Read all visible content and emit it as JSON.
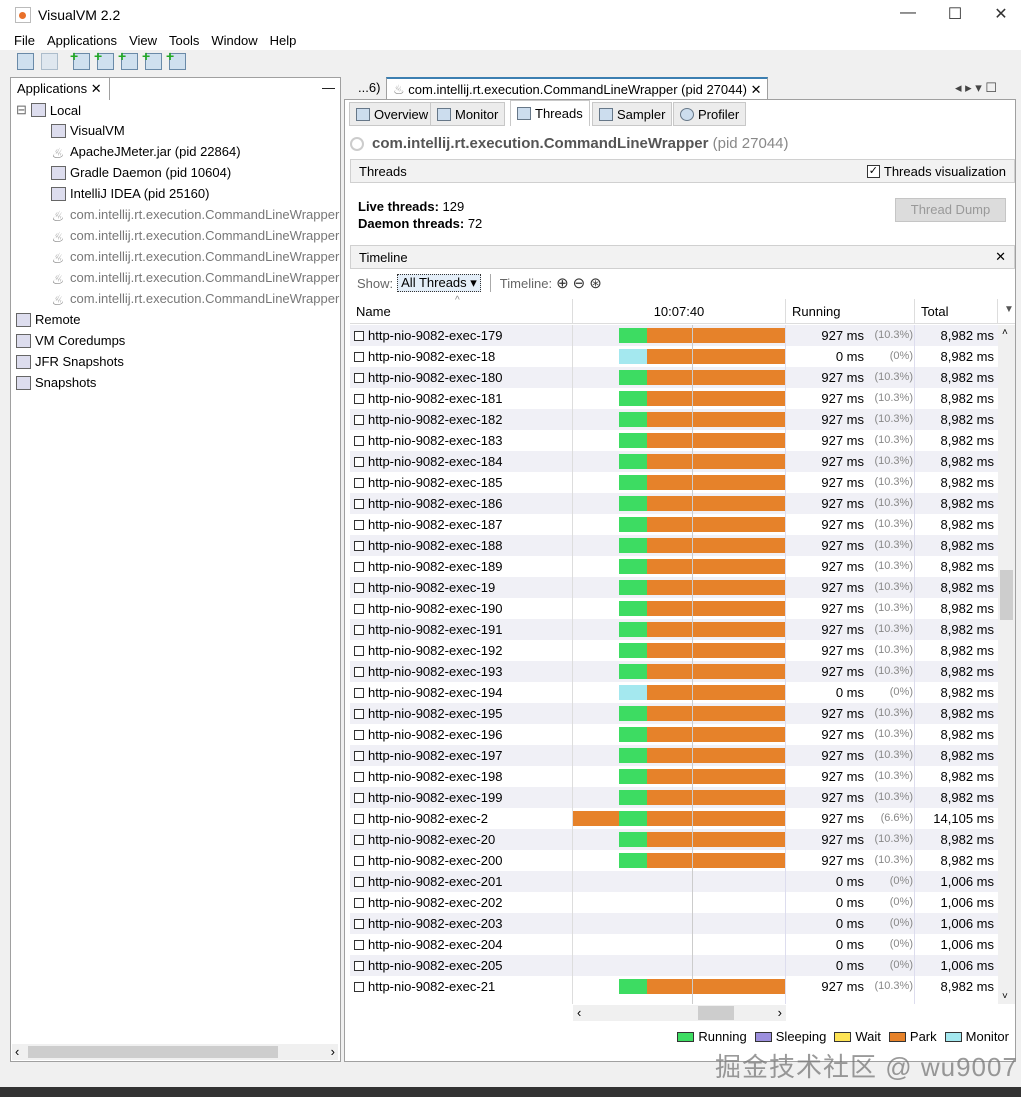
{
  "window": {
    "title": "VisualVM 2.2",
    "controls": [
      "—",
      "☐",
      "✕"
    ]
  },
  "menu": [
    "File",
    "Applications",
    "View",
    "Tools",
    "Window",
    "Help"
  ],
  "toolbar": [
    {
      "icon": "load-icon"
    },
    {
      "icon": "save-icon"
    },
    {
      "icon": "add-jmx-connection-icon"
    },
    {
      "icon": "add-jmx-icon"
    },
    {
      "icon": "add-coredump-icon"
    },
    {
      "icon": "add-jfr-icon"
    },
    {
      "icon": "add-snapshot-icon"
    }
  ],
  "sidebar": {
    "tab_label": "Applications",
    "close": "✕",
    "minimize": "—",
    "items": [
      {
        "label": "Local",
        "level": 0,
        "icon": "computer-icon"
      },
      {
        "label": "VisualVM",
        "level": 1,
        "icon": "visualvm-icon"
      },
      {
        "label": "ApacheJMeter.jar (pid 22864)",
        "level": 1,
        "icon": "java-icon"
      },
      {
        "label": "Gradle Daemon (pid 10604)",
        "level": 1,
        "icon": "gradle-icon"
      },
      {
        "label": "IntelliJ IDEA (pid 25160)",
        "level": 1,
        "icon": "intellij-icon"
      },
      {
        "label": "com.intellij.rt.execution.CommandLineWrapper",
        "level": 1,
        "icon": "java-icon",
        "dim": true
      },
      {
        "label": "com.intellij.rt.execution.CommandLineWrapper",
        "level": 1,
        "icon": "java-icon",
        "dim": true
      },
      {
        "label": "com.intellij.rt.execution.CommandLineWrapper",
        "level": 1,
        "icon": "java-icon",
        "dim": true
      },
      {
        "label": "com.intellij.rt.execution.CommandLineWrapper",
        "level": 1,
        "icon": "java-icon",
        "dim": true
      },
      {
        "label": "com.intellij.rt.execution.CommandLineWrapper",
        "level": 1,
        "icon": "java-icon",
        "dim": true
      },
      {
        "label": "Remote",
        "level": 0,
        "icon": "remote-icon"
      },
      {
        "label": "VM Coredumps",
        "level": 0,
        "icon": "coredump-icon"
      },
      {
        "label": "JFR Snapshots",
        "level": 0,
        "icon": "jfr-icon"
      },
      {
        "label": "Snapshots",
        "level": 0,
        "icon": "snapshot-icon"
      }
    ]
  },
  "doc_tabs": {
    "overflow": "...6)",
    "active": "com.intellij.rt.execution.CommandLineWrapper (pid 27044)",
    "close": "✕"
  },
  "sub_tabs": [
    "Overview",
    "Monitor",
    "Threads",
    "Sampler",
    "Profiler"
  ],
  "active_sub_tab": "Threads",
  "page": {
    "title": "com.intellij.rt.execution.CommandLineWrapper",
    "pid": "(pid 27044)"
  },
  "threads_section": {
    "title": "Threads",
    "visualization_label": "Threads visualization",
    "visualization_checked": true,
    "live_label": "Live threads:",
    "live": "129",
    "daemon_label": "Daemon threads:",
    "daemon": "72",
    "dump_button": "Thread Dump"
  },
  "timeline": {
    "title": "Timeline",
    "close": "✕",
    "show_label": "Show:",
    "show_value": "All Threads",
    "timeline_label": "Timeline:",
    "columns": {
      "name": "Name",
      "time": "10:07:40",
      "running": "Running",
      "total": "Total"
    }
  },
  "colors": {
    "Running": "#3ddc62",
    "Sleeping": "#9c8fdd",
    "Wait": "#fde354",
    "Park": "#e6822a",
    "Monitor": "#a4e8ef"
  },
  "legend": [
    "Running",
    "Sleeping",
    "Wait",
    "Park",
    "Monitor"
  ],
  "threads": [
    {
      "name": "http-nio-9082-exec-179",
      "pattern": "normal",
      "running": "927 ms",
      "pct": "(10.3%)",
      "total": "8,982 ms"
    },
    {
      "name": "http-nio-9082-exec-18",
      "pattern": "monitor",
      "running": "0 ms",
      "pct": "(0%)",
      "total": "8,982 ms"
    },
    {
      "name": "http-nio-9082-exec-180",
      "pattern": "normal",
      "running": "927 ms",
      "pct": "(10.3%)",
      "total": "8,982 ms"
    },
    {
      "name": "http-nio-9082-exec-181",
      "pattern": "normal",
      "running": "927 ms",
      "pct": "(10.3%)",
      "total": "8,982 ms"
    },
    {
      "name": "http-nio-9082-exec-182",
      "pattern": "normal",
      "running": "927 ms",
      "pct": "(10.3%)",
      "total": "8,982 ms"
    },
    {
      "name": "http-nio-9082-exec-183",
      "pattern": "normal",
      "running": "927 ms",
      "pct": "(10.3%)",
      "total": "8,982 ms"
    },
    {
      "name": "http-nio-9082-exec-184",
      "pattern": "normal",
      "running": "927 ms",
      "pct": "(10.3%)",
      "total": "8,982 ms"
    },
    {
      "name": "http-nio-9082-exec-185",
      "pattern": "normal",
      "running": "927 ms",
      "pct": "(10.3%)",
      "total": "8,982 ms"
    },
    {
      "name": "http-nio-9082-exec-186",
      "pattern": "normal",
      "running": "927 ms",
      "pct": "(10.3%)",
      "total": "8,982 ms"
    },
    {
      "name": "http-nio-9082-exec-187",
      "pattern": "normal",
      "running": "927 ms",
      "pct": "(10.3%)",
      "total": "8,982 ms"
    },
    {
      "name": "http-nio-9082-exec-188",
      "pattern": "normal",
      "running": "927 ms",
      "pct": "(10.3%)",
      "total": "8,982 ms"
    },
    {
      "name": "http-nio-9082-exec-189",
      "pattern": "normal",
      "running": "927 ms",
      "pct": "(10.3%)",
      "total": "8,982 ms"
    },
    {
      "name": "http-nio-9082-exec-19",
      "pattern": "normal",
      "running": "927 ms",
      "pct": "(10.3%)",
      "total": "8,982 ms"
    },
    {
      "name": "http-nio-9082-exec-190",
      "pattern": "normal",
      "running": "927 ms",
      "pct": "(10.3%)",
      "total": "8,982 ms"
    },
    {
      "name": "http-nio-9082-exec-191",
      "pattern": "normal",
      "running": "927 ms",
      "pct": "(10.3%)",
      "total": "8,982 ms"
    },
    {
      "name": "http-nio-9082-exec-192",
      "pattern": "normal",
      "running": "927 ms",
      "pct": "(10.3%)",
      "total": "8,982 ms"
    },
    {
      "name": "http-nio-9082-exec-193",
      "pattern": "normal",
      "running": "927 ms",
      "pct": "(10.3%)",
      "total": "8,982 ms"
    },
    {
      "name": "http-nio-9082-exec-194",
      "pattern": "monitor",
      "running": "0 ms",
      "pct": "(0%)",
      "total": "8,982 ms"
    },
    {
      "name": "http-nio-9082-exec-195",
      "pattern": "normal",
      "running": "927 ms",
      "pct": "(10.3%)",
      "total": "8,982 ms"
    },
    {
      "name": "http-nio-9082-exec-196",
      "pattern": "normal",
      "running": "927 ms",
      "pct": "(10.3%)",
      "total": "8,982 ms"
    },
    {
      "name": "http-nio-9082-exec-197",
      "pattern": "normal",
      "running": "927 ms",
      "pct": "(10.3%)",
      "total": "8,982 ms"
    },
    {
      "name": "http-nio-9082-exec-198",
      "pattern": "normal",
      "running": "927 ms",
      "pct": "(10.3%)",
      "total": "8,982 ms"
    },
    {
      "name": "http-nio-9082-exec-199",
      "pattern": "normal",
      "running": "927 ms",
      "pct": "(10.3%)",
      "total": "8,982 ms"
    },
    {
      "name": "http-nio-9082-exec-2",
      "pattern": "long",
      "running": "927 ms",
      "pct": "(6.6%)",
      "total": "14,105 ms"
    },
    {
      "name": "http-nio-9082-exec-20",
      "pattern": "normal",
      "running": "927 ms",
      "pct": "(10.3%)",
      "total": "8,982 ms"
    },
    {
      "name": "http-nio-9082-exec-200",
      "pattern": "normal",
      "running": "927 ms",
      "pct": "(10.3%)",
      "total": "8,982 ms"
    },
    {
      "name": "http-nio-9082-exec-201",
      "pattern": "none",
      "running": "0 ms",
      "pct": "(0%)",
      "total": "1,006 ms"
    },
    {
      "name": "http-nio-9082-exec-202",
      "pattern": "none",
      "running": "0 ms",
      "pct": "(0%)",
      "total": "1,006 ms"
    },
    {
      "name": "http-nio-9082-exec-203",
      "pattern": "none",
      "running": "0 ms",
      "pct": "(0%)",
      "total": "1,006 ms"
    },
    {
      "name": "http-nio-9082-exec-204",
      "pattern": "none",
      "running": "0 ms",
      "pct": "(0%)",
      "total": "1,006 ms"
    },
    {
      "name": "http-nio-9082-exec-205",
      "pattern": "none",
      "running": "0 ms",
      "pct": "(0%)",
      "total": "1,006 ms"
    },
    {
      "name": "http-nio-9082-exec-21",
      "pattern": "normal",
      "running": "927 ms",
      "pct": "(10.3%)",
      "total": "8,982 ms"
    }
  ],
  "watermark": "掘金技术社区 @ wu9007"
}
